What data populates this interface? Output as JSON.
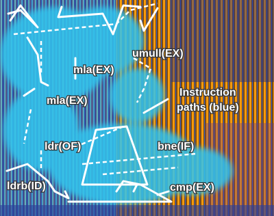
{
  "annotations": [
    "mla(EX)",
    "umull(EX)",
    "mla(EX)",
    "ldr(OF)",
    "bne(IF)",
    "ldrb(ID)",
    "cmp(EX)"
  ],
  "callout": {
    "lines": [
      "Instruction",
      "paths (blue)"
    ]
  }
}
